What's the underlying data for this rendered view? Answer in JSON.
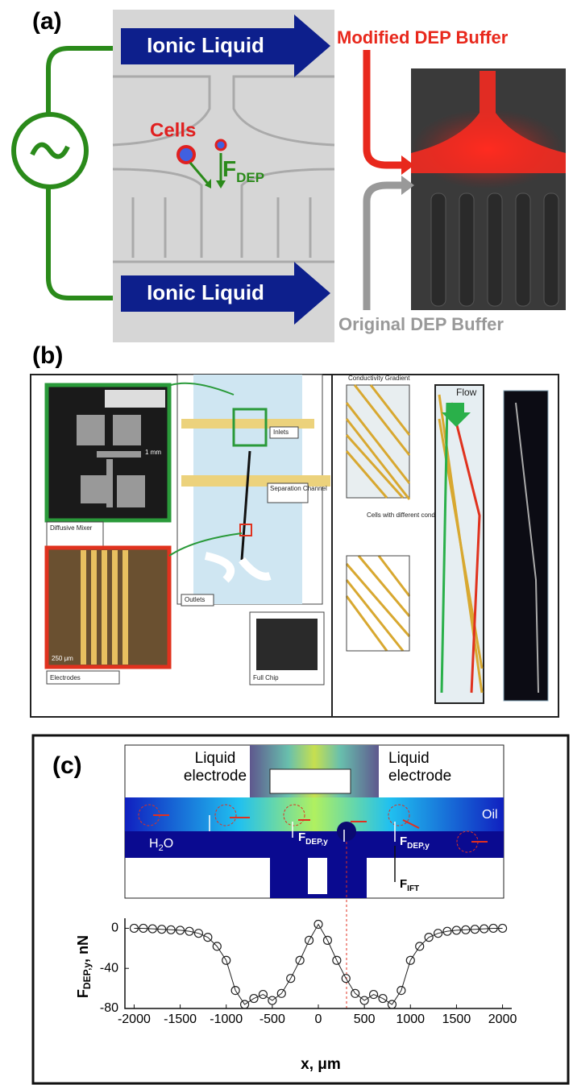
{
  "panel_a": {
    "label": "(a)",
    "top_arrow": "Ionic Liquid",
    "bottom_arrow": "Ionic Liquid",
    "cells": "Cells",
    "force": {
      "main": "F",
      "sub": "DEP"
    },
    "modified": "Modified DEP Buffer",
    "original": "Original DEP Buffer"
  },
  "panel_b": {
    "label": "(b)",
    "mixer_scale": "1 mm",
    "mixer": "Diffusive Mixer",
    "electrode_scale": "250 μm",
    "electrodes": "Electrodes",
    "inlets": "Inlets",
    "channel": "Separation Channel",
    "outlets": "Outlets",
    "full_chip": "Full Chip",
    "gradient": "Conductivity Gradient",
    "flow": "Flow",
    "cells": "Cells with different conductivities"
  },
  "panel_c": {
    "label": "(c)",
    "left_electrode": "Liquid electrode",
    "right_electrode": "Liquid electrode",
    "oil": "Oil",
    "water": {
      "main": "H",
      "sub": "2",
      "suffix": "O"
    },
    "force_1": {
      "main": "F",
      "sub": "DEP,y"
    },
    "force_2": {
      "main": "F",
      "sub": "DEP,y"
    },
    "force_ift": {
      "main": "F",
      "sub": "IFT"
    }
  },
  "chart_data": {
    "type": "line",
    "y_label": {
      "main": "F",
      "sub": "DEP,y",
      "suffix": ", nN"
    },
    "x_label": "x, μm",
    "x": [
      -2000,
      -1900,
      -1800,
      -1700,
      -1600,
      -1500,
      -1400,
      -1300,
      -1200,
      -1100,
      -1000,
      -900,
      -800,
      -700,
      -600,
      -500,
      -400,
      -300,
      -200,
      -100,
      0,
      100,
      200,
      300,
      400,
      500,
      600,
      700,
      800,
      900,
      1000,
      1100,
      1200,
      1300,
      1400,
      1500,
      1600,
      1700,
      1800,
      1900,
      2000
    ],
    "series": [
      {
        "color": "#222222",
        "values": [
          0,
          0,
          -0.5,
          -1,
          -1.5,
          -2,
          -3,
          -5,
          -9,
          -18,
          -32,
          -62,
          -76,
          -70,
          -66,
          -72,
          -65,
          -50,
          -32,
          -12,
          4,
          -12,
          -32,
          -50,
          -65,
          -72,
          -66,
          -70,
          -76,
          -62,
          -32,
          -18,
          -9,
          -5,
          -3,
          -2,
          -1.5,
          -1,
          -0.5,
          0,
          0
        ]
      }
    ],
    "xlim": [
      -2100,
      2100
    ],
    "ylim": [
      -80,
      10
    ],
    "xticks": [
      -2000,
      -1500,
      -1000,
      -500,
      0,
      500,
      1000,
      1500,
      2000
    ],
    "yticks": [
      0,
      -40,
      -80
    ]
  }
}
